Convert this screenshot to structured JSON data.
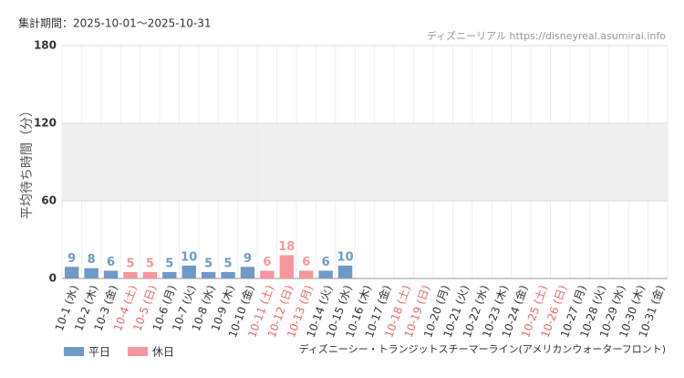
{
  "period": "集計期間：2025-10-01〜2025-10-31",
  "source": "ディズニーリアル https://disneyreal.asumirai.info",
  "attraction": "ディズニーシー・トランジットスチーマーライン(アメリカンウォーターフロント)",
  "chart_data": {
    "type": "bar",
    "ylabel": "平均待ち時間（分）",
    "categories": [
      "10-1 (水)",
      "10-2 (木)",
      "10-3 (金)",
      "10-4 (土)",
      "10-5 (日)",
      "10-6 (月)",
      "10-7 (火)",
      "10-8 (水)",
      "10-9 (木)",
      "10-10 (金)",
      "10-11 (土)",
      "10-12 (日)",
      "10-13 (月)",
      "10-14 (火)",
      "10-15 (水)",
      "10-16 (木)",
      "10-17 (金)",
      "10-18 (土)",
      "10-19 (日)",
      "10-20 (月)",
      "10-21 (火)",
      "10-22 (水)",
      "10-23 (木)",
      "10-24 (金)",
      "10-25 (土)",
      "10-26 (日)",
      "10-27 (月)",
      "10-28 (火)",
      "10-29 (水)",
      "10-30 (木)",
      "10-31 (金)"
    ],
    "category_colors": [
      "#333",
      "#333",
      "#333",
      "#e8676f",
      "#e8676f",
      "#333",
      "#333",
      "#333",
      "#333",
      "#333",
      "#e8676f",
      "#e8676f",
      "#e8676f",
      "#333",
      "#333",
      "#333",
      "#333",
      "#e8676f",
      "#e8676f",
      "#333",
      "#333",
      "#333",
      "#333",
      "#333",
      "#e8676f",
      "#e8676f",
      "#333",
      "#333",
      "#333",
      "#333",
      "#333"
    ],
    "series": [
      {
        "name": "平日",
        "color": "#6f9ac8",
        "values": [
          9,
          8,
          6,
          null,
          null,
          5,
          10,
          5,
          5,
          9,
          null,
          null,
          null,
          6,
          10,
          null,
          null,
          null,
          null,
          null,
          null,
          null,
          null,
          null,
          null,
          null,
          null,
          null,
          null,
          null,
          null
        ]
      },
      {
        "name": "休日",
        "color": "#f5979d",
        "values": [
          null,
          null,
          null,
          5,
          5,
          null,
          null,
          null,
          null,
          null,
          6,
          18,
          6,
          null,
          null,
          null,
          null,
          null,
          null,
          null,
          null,
          null,
          null,
          null,
          null,
          null,
          null,
          null,
          null,
          null,
          null
        ]
      }
    ],
    "ylim": [
      0,
      180
    ],
    "yticks": [
      0,
      60,
      120,
      180
    ],
    "shaded_band": [
      60,
      120
    ],
    "grid": true
  }
}
